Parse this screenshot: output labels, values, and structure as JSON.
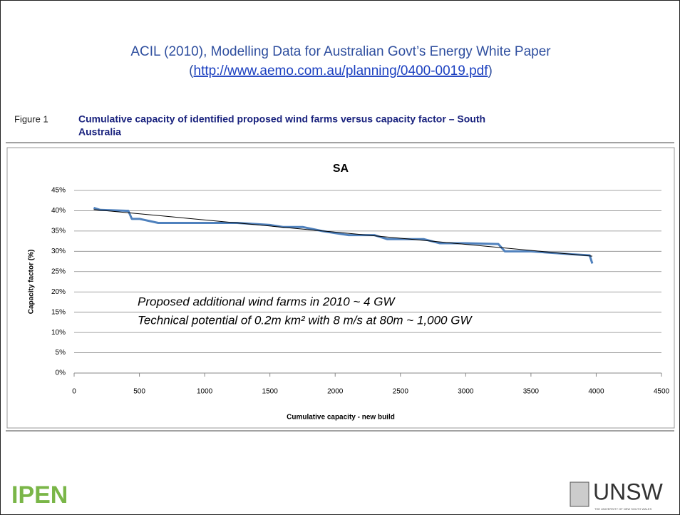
{
  "header": {
    "title": "ACIL (2010), Modelling Data for Australian Govt’s Energy White Paper",
    "source_prefix": "(",
    "link": "http://www.aemo.com.au/planning/0400-0019.pdf",
    "source_suffix": ")"
  },
  "figure": {
    "label": "Figure 1",
    "caption_lines": [
      "Cumulative capacity of identified proposed wind farms versus capacity factor – South",
      "Australia"
    ]
  },
  "logos": {
    "left": "IPEN",
    "right": "UNSW",
    "right_sub": "THE UNIVERSITY OF NEW SOUTH WALES"
  },
  "chart_data": {
    "type": "line",
    "title": "SA",
    "x_label": "Cumulative capacity  - new build",
    "y_label": "Capacity factor (%)",
    "annotations": [
      "Proposed additional wind farms in 2010 ~ 4 GW",
      "Technical potential of 0.2m km² with 8 m/s at 80m ~ 1,000 GW"
    ],
    "xlim": [
      0,
      4500
    ],
    "ylim": [
      0,
      45
    ],
    "xticks": [
      0,
      500,
      1000,
      1500,
      2000,
      2500,
      3000,
      3500,
      4000,
      4500
    ],
    "yticks": [
      {
        "value": 0,
        "label": "0%"
      },
      {
        "value": 5,
        "label": "5%"
      },
      {
        "value": 10,
        "label": "10%"
      },
      {
        "value": 15,
        "label": "15%"
      },
      {
        "value": 20,
        "label": "20%"
      },
      {
        "value": 25,
        "label": "25%"
      },
      {
        "value": 30,
        "label": "30%"
      },
      {
        "value": 35,
        "label": "35%"
      },
      {
        "value": 40,
        "label": "40%"
      },
      {
        "value": 45,
        "label": "45%"
      }
    ],
    "grid": true,
    "series": [
      {
        "color": "#4f81bd",
        "line_width": 3,
        "x": [
          150,
          200,
          400,
          415,
          442,
          500,
          644,
          1250,
          1500,
          1600,
          1750,
          1900,
          2000,
          2100,
          2300,
          2400,
          2680,
          2800,
          3000,
          3250,
          3300,
          3500,
          3800,
          3950,
          3970
        ],
        "values": [
          40.7,
          40.2,
          40,
          40,
          38,
          38,
          37,
          37,
          36.5,
          36,
          36,
          35,
          34.5,
          34,
          34,
          33,
          33,
          32,
          32,
          31.8,
          30,
          30,
          29.3,
          29,
          27
        ]
      },
      {
        "color": "#000000",
        "line_width": 1,
        "x": [
          150,
          3970
        ],
        "values": [
          40.3,
          28.8
        ]
      }
    ]
  }
}
